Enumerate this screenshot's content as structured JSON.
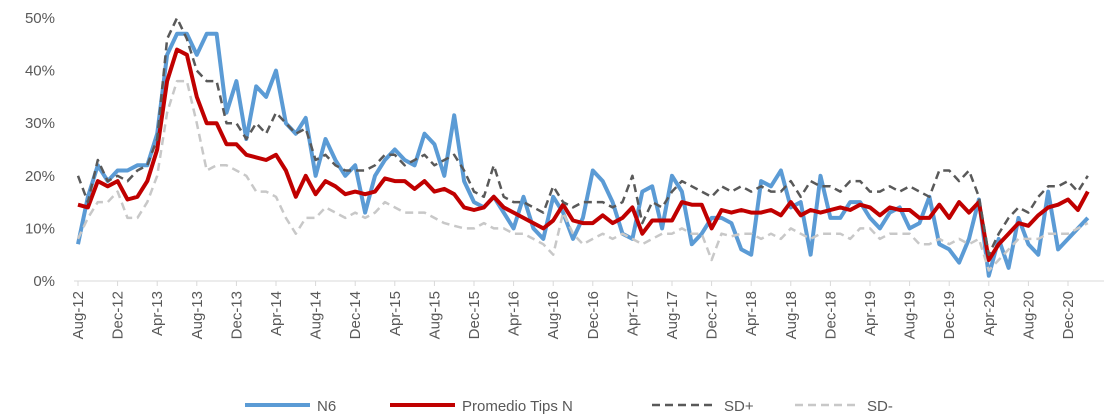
{
  "chart_data": {
    "type": "line",
    "categories": [
      "Aug-12",
      null,
      null,
      null,
      "Dec-12",
      null,
      null,
      null,
      "Apr-13",
      null,
      null,
      null,
      "Aug-13",
      null,
      null,
      null,
      "Dec-13",
      null,
      null,
      null,
      "Apr-14",
      null,
      null,
      null,
      "Aug-14",
      null,
      null,
      null,
      "Dec-14",
      null,
      null,
      null,
      "Apr-15",
      null,
      null,
      null,
      "Aug-15",
      null,
      null,
      null,
      "Dec-15",
      null,
      null,
      null,
      "Apr-16",
      null,
      null,
      null,
      "Aug-16",
      null,
      null,
      null,
      "Dec-16",
      null,
      null,
      null,
      "Apr-17",
      null,
      null,
      null,
      "Aug-17",
      null,
      null,
      null,
      "Dec-17",
      null,
      null,
      null,
      "Apr-18",
      null,
      null,
      null,
      "Aug-18",
      null,
      null,
      null,
      "Dec-18",
      null,
      null,
      null,
      "Apr-19",
      null,
      null,
      null,
      "Aug-19",
      null,
      null,
      null,
      "Dec-19",
      null,
      null,
      null,
      "Apr-20",
      null,
      null,
      null,
      "Aug-20",
      null,
      null,
      null,
      "Dec-20",
      null,
      null
    ],
    "series": [
      {
        "name": "N6",
        "color": "#5b9bd5",
        "dash": "none",
        "width": 4,
        "values": [
          7,
          16,
          22,
          19,
          21,
          21,
          22,
          22,
          28,
          43,
          47,
          47,
          43,
          47,
          47,
          32,
          38,
          27,
          37,
          35,
          40,
          30,
          28,
          31,
          20,
          27,
          23,
          20,
          22,
          13,
          20,
          23,
          25,
          23,
          22,
          28,
          26,
          20,
          31.5,
          19,
          15,
          14,
          16,
          13,
          10,
          16,
          10,
          8,
          16,
          13,
          8,
          12,
          21,
          19,
          15,
          9,
          8,
          17,
          18,
          10,
          20,
          17,
          7,
          9,
          12,
          12,
          11,
          6,
          5,
          19,
          18,
          21,
          14,
          15,
          5,
          20,
          12,
          12,
          15,
          15,
          12,
          10,
          13,
          14,
          10,
          11,
          16,
          7,
          6,
          3.5,
          8,
          15.5,
          1,
          8,
          2.5,
          12,
          7,
          5,
          17,
          6,
          8,
          10,
          12
        ]
      },
      {
        "name": "Promedio Tips N",
        "color": "#c00000",
        "dash": "none",
        "width": 4,
        "values": [
          14.5,
          14,
          19,
          18,
          19,
          15.5,
          16,
          19,
          25,
          38,
          44,
          43,
          35,
          30,
          30,
          26,
          26,
          24,
          23.5,
          23,
          24,
          21,
          16,
          20,
          16.5,
          19,
          18,
          16.5,
          17,
          16.5,
          17,
          19.5,
          19,
          19,
          17.5,
          19,
          17,
          17.5,
          16.5,
          14,
          13.5,
          14,
          16,
          14,
          13,
          12,
          11,
          10,
          11.5,
          14.5,
          11.5,
          11,
          11,
          12.5,
          11,
          12,
          14,
          9,
          11.5,
          11.5,
          11.5,
          15,
          14.5,
          14.5,
          10,
          13.5,
          13,
          13.5,
          13,
          13,
          13.5,
          12.5,
          15,
          12.5,
          13.5,
          13,
          13.5,
          14,
          13.5,
          14.5,
          14,
          12.5,
          14,
          13.5,
          13.5,
          12,
          12,
          14.5,
          12,
          15,
          13,
          15,
          4,
          7,
          9,
          11,
          10.5,
          12.5,
          14,
          14.5,
          15.5,
          13.5,
          17
        ]
      },
      {
        "name": "SD+",
        "color": "#595959",
        "dash": "8 5",
        "width": 2.5,
        "values": [
          20,
          15,
          23,
          19,
          20,
          19,
          21,
          22,
          27,
          46,
          50,
          46,
          40,
          38,
          38,
          30,
          30,
          27,
          30,
          28,
          32,
          30,
          28,
          29,
          23,
          24,
          22,
          21,
          21,
          21,
          22,
          24,
          24,
          22,
          23,
          24,
          22,
          23,
          24,
          21,
          17,
          16,
          22,
          16,
          15,
          15,
          14,
          13,
          18,
          15,
          14,
          15,
          15,
          15,
          14,
          15,
          20,
          11,
          15,
          14,
          17,
          19,
          18,
          17,
          16,
          18,
          17,
          18,
          17,
          18,
          17,
          17,
          19,
          16,
          19,
          18,
          18,
          17,
          19,
          19,
          17,
          17,
          18,
          17,
          18,
          17,
          16,
          21,
          21,
          19,
          21,
          16,
          5,
          9,
          12,
          14,
          13,
          16,
          18,
          18,
          19,
          17,
          20
        ]
      },
      {
        "name": "SD-",
        "color": "#c8c8c8",
        "dash": "8 5",
        "width": 2.5,
        "values": [
          8,
          12,
          15,
          15,
          17,
          12,
          12,
          15,
          20,
          32,
          38,
          38,
          30,
          21,
          22,
          22,
          21,
          20,
          17,
          17,
          16,
          12,
          9,
          12,
          12,
          14,
          13,
          12,
          13,
          12,
          13,
          15,
          14,
          13,
          13,
          13,
          12,
          11,
          10.5,
          10,
          10,
          11,
          10,
          10,
          9,
          9,
          8,
          7,
          5,
          13,
          9,
          7,
          8,
          9,
          8,
          9,
          8,
          7,
          8,
          9,
          9,
          10,
          9,
          9,
          4,
          9,
          8.5,
          9,
          9,
          8,
          9,
          8,
          10,
          9,
          8,
          9,
          9,
          9,
          8,
          10,
          10,
          8,
          9,
          9,
          9,
          7,
          7,
          8,
          7,
          8,
          7,
          8,
          2,
          4,
          6,
          8,
          8,
          8,
          9,
          9,
          9,
          10,
          11
        ]
      }
    ],
    "ylim": [
      0,
      50
    ],
    "yticks": [
      {
        "value": 0,
        "label": "0%"
      },
      {
        "value": 10,
        "label": "10%"
      },
      {
        "value": 20,
        "label": "20%"
      },
      {
        "value": 30,
        "label": "30%"
      },
      {
        "value": 40,
        "label": "40%"
      },
      {
        "value": 50,
        "label": "50%"
      }
    ],
    "grid": false,
    "legend": "bottom"
  }
}
